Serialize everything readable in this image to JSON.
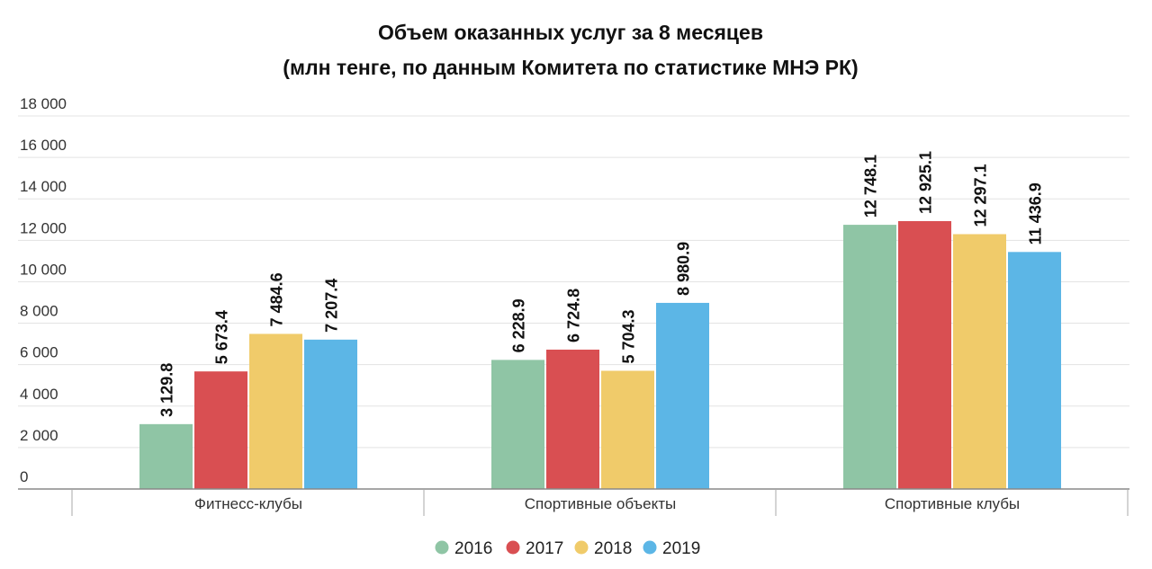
{
  "chart_data": {
    "type": "bar",
    "title": "Объем оказанных услуг за 8 месяцев",
    "subtitle": "(млн тенге, по данным Комитета по статистике МНЭ РК)",
    "categories": [
      "Фитнесс-клубы",
      "Спортивные объекты",
      "Спортивные клубы"
    ],
    "series": [
      {
        "name": "2016",
        "color": "#8fc5a5",
        "values": [
          3129.8,
          6228.9,
          12748.1
        ],
        "labels": [
          "3 129.8",
          "6 228.9",
          "12 748.1"
        ]
      },
      {
        "name": "2017",
        "color": "#d94f52",
        "values": [
          5673.4,
          6724.8,
          12925.1
        ],
        "labels": [
          "5 673.4",
          "6 724.8",
          "12 925.1"
        ]
      },
      {
        "name": "2018",
        "color": "#f0cb6a",
        "values": [
          7484.6,
          5704.3,
          12297.1
        ],
        "labels": [
          "7 484.6",
          "5 704.3",
          "12 297.1"
        ]
      },
      {
        "name": "2019",
        "color": "#5cb6e6",
        "values": [
          7207.4,
          8980.9,
          11436.9
        ],
        "labels": [
          "7 207.4",
          "8 980.9",
          "11 436.9"
        ]
      }
    ],
    "yticks": [
      0,
      2000,
      4000,
      6000,
      8000,
      10000,
      12000,
      14000,
      16000,
      18000
    ],
    "ytick_labels": [
      "0",
      "2 000",
      "4 000",
      "6 000",
      "8 000",
      "10 000",
      "12 000",
      "14 000",
      "16 000",
      "18 000"
    ],
    "ylim": [
      0,
      18000
    ],
    "xlabel": "",
    "ylabel": "",
    "grid": true,
    "legend": "bottom-center"
  }
}
